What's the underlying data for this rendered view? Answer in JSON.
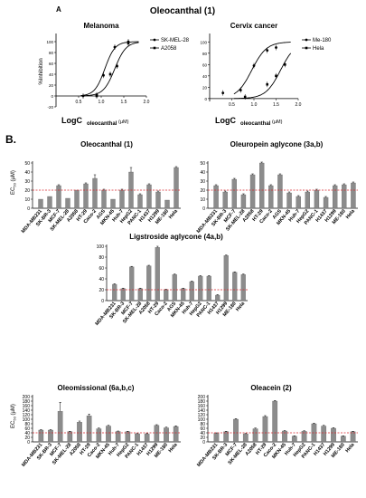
{
  "section_a": {
    "label": "A",
    "title": "Oleocanthal (1)",
    "panels": [
      {
        "title": "Melanoma",
        "ylabel": "%Inhibition",
        "xlabel_main": "LogC",
        "xlabel_sub": "oleocanthal",
        "xlabel_unit": "(µM)",
        "yticks": [
          "-20",
          "0",
          "20",
          "40",
          "60",
          "80",
          "100"
        ],
        "xticks": [
          "0.5",
          "1.0",
          "1.5",
          "2.0"
        ],
        "series": [
          {
            "name": "SK-MEL-28",
            "marker": "circle",
            "points": [
              [
                0.6,
                0
              ],
              [
                0.9,
                2
              ],
              [
                1.05,
                38
              ],
              [
                1.3,
                90
              ],
              [
                1.6,
                100
              ]
            ]
          },
          {
            "name": "A2058",
            "marker": "square",
            "points": [
              [
                0.9,
                0
              ],
              [
                1.2,
                40
              ],
              [
                1.35,
                55
              ],
              [
                1.6,
                97
              ]
            ]
          }
        ]
      },
      {
        "title": "Cervix cancer",
        "ylabel": "",
        "xlabel_main": "LogC",
        "xlabel_sub": "oleocanthal",
        "xlabel_unit": "(µM)",
        "yticks": [
          "0",
          "20",
          "40",
          "60",
          "80",
          "100"
        ],
        "xticks": [
          "0.5",
          "1.0",
          "1.5",
          "2.0"
        ],
        "series": [
          {
            "name": "Me-180",
            "marker": "circle",
            "points": [
              [
                0.3,
                10
              ],
              [
                0.7,
                15
              ],
              [
                1.0,
                58
              ],
              [
                1.3,
                85
              ],
              [
                1.5,
                90
              ]
            ]
          },
          {
            "name": "Hela",
            "marker": "square",
            "points": [
              [
                0.8,
                3
              ],
              [
                1.3,
                25
              ],
              [
                1.5,
                40
              ],
              [
                1.7,
                60
              ]
            ]
          }
        ]
      }
    ]
  },
  "section_b": {
    "label": "B.",
    "ylabel_main": "EC",
    "ylabel_sub": "50",
    "ylabel_unit": "(µM)"
  },
  "chart_data": [
    {
      "type": "line",
      "title": "Melanoma",
      "ylabel": "%Inhibition",
      "xlabel": "LogColeocanthal (µM)",
      "xlim": [
        0.0,
        2.0
      ],
      "ylim": [
        -20,
        110
      ],
      "series": [
        {
          "name": "SK-MEL-28",
          "x": [
            0.6,
            0.9,
            1.05,
            1.3,
            1.6
          ],
          "values": [
            0,
            2,
            38,
            90,
            100
          ]
        },
        {
          "name": "A2058",
          "x": [
            0.9,
            1.2,
            1.35,
            1.6
          ],
          "values": [
            0,
            40,
            55,
            97
          ]
        }
      ]
    },
    {
      "type": "line",
      "title": "Cervix cancer",
      "xlabel": "LogColeocanthal (µM)",
      "xlim": [
        0.0,
        2.0
      ],
      "ylim": [
        -5,
        110
      ],
      "series": [
        {
          "name": "Me-180",
          "x": [
            0.3,
            0.7,
            1.0,
            1.3,
            1.5
          ],
          "values": [
            10,
            15,
            58,
            85,
            90
          ]
        },
        {
          "name": "Hela",
          "x": [
            0.8,
            1.3,
            1.5,
            1.7
          ],
          "values": [
            3,
            25,
            40,
            60
          ]
        }
      ]
    },
    {
      "type": "bar",
      "title": "Oleocanthal (1)",
      "ylabel": "EC50 (µM)",
      "ylim": [
        0,
        50
      ],
      "yticks": [
        "0",
        "10",
        "20",
        "30",
        "40",
        "50"
      ],
      "reference_line": 20,
      "categories": [
        "MDA-MB231",
        "SK-BR-3",
        "MCF-7",
        "SK-MEL-28",
        "A2058",
        "HT-29",
        "Caco-2",
        "AGS",
        "MKN-45",
        "Huh-7",
        "HepG2",
        "PANC-1",
        "H1437",
        "H1299",
        "ME-180",
        "Hela"
      ],
      "values": [
        10,
        13,
        25,
        11,
        20,
        27,
        33,
        20,
        10,
        20,
        40,
        15,
        26,
        18,
        9,
        45
      ],
      "errors": [
        0,
        0,
        1,
        0,
        0,
        1,
        4,
        1,
        0,
        1,
        5,
        1,
        1,
        1,
        0,
        1
      ]
    },
    {
      "type": "bar",
      "title": "Oleuropein aglycone (3a,b)",
      "ylim": [
        0,
        50
      ],
      "yticks": [
        "0",
        "10",
        "20",
        "30",
        "40",
        "50"
      ],
      "reference_line": 20,
      "categories": [
        "MDA-MB231",
        "SK-BR-3",
        "MCF-7",
        "SK-MEL-28",
        "A2058",
        "HT-29",
        "Caco-2",
        "AGS",
        "MKN-45",
        "Huh-7",
        "HepG2",
        "PANC-1",
        "H1437",
        "H1299",
        "ME-180",
        "Hela"
      ],
      "values": [
        25,
        18,
        32,
        15,
        37,
        50,
        25,
        37,
        17,
        13,
        18,
        20,
        12,
        25,
        26,
        28
      ],
      "errors": [
        1,
        1,
        1,
        1,
        1,
        1,
        1,
        1,
        1,
        1,
        1,
        1,
        1,
        1,
        1,
        1
      ]
    },
    {
      "type": "bar",
      "title": "Ligstroside aglycone (4a,b)",
      "ylim": [
        0,
        100
      ],
      "yticks": [
        "0",
        "20",
        "40",
        "60",
        "80",
        "100"
      ],
      "reference_line": 20,
      "categories": [
        "MDA-MB231",
        "SK-BR-3",
        "MCF-7",
        "SK-MEL-28",
        "A2058",
        "HT-29",
        "Caco-2",
        "AGS",
        "MKN-45",
        "Huh-7",
        "HepG2",
        "PANC-1",
        "H1437",
        "H1299",
        "ME-180",
        "Hela"
      ],
      "values": [
        30,
        22,
        62,
        22,
        64,
        98,
        20,
        48,
        22,
        35,
        45,
        45,
        10,
        83,
        52,
        48
      ],
      "errors": [
        1,
        1,
        1,
        1,
        1,
        2,
        1,
        1,
        1,
        1,
        1,
        1,
        1,
        1,
        1,
        1
      ]
    },
    {
      "type": "bar",
      "title": "Oleomissional (6a,b,c)",
      "ylabel": "EC50 (µM)",
      "ylim": [
        0,
        200
      ],
      "yticks": [
        "0",
        "20",
        "40",
        "60",
        "80",
        "100",
        "120",
        "140",
        "160",
        "180",
        "200"
      ],
      "reference_line": 40,
      "categories": [
        "MDA-MB231",
        "SK-BR-3",
        "MCF-7",
        "SK-MEL-28",
        "A2058",
        "HT-29",
        "Caco-2",
        "MKN-45",
        "Huh-7",
        "HepG2",
        "PANC-1",
        "H1437",
        "H1299",
        "ME-180",
        "Hela"
      ],
      "values": [
        52,
        52,
        135,
        45,
        87,
        115,
        58,
        70,
        46,
        45,
        36,
        35,
        73,
        62,
        68
      ],
      "errors": [
        2,
        2,
        40,
        2,
        5,
        8,
        3,
        3,
        2,
        2,
        2,
        2,
        3,
        3,
        3
      ]
    },
    {
      "type": "bar",
      "title": "Oleacein (2)",
      "ylim": [
        0,
        200
      ],
      "yticks": [
        "0",
        "20",
        "40",
        "60",
        "80",
        "100",
        "120",
        "140",
        "160",
        "180",
        "200"
      ],
      "reference_line": 40,
      "categories": [
        "MDA-MB231",
        "SK-BR-3",
        "MCF-7",
        "SK-MEL-28",
        "A2058",
        "HT-29",
        "Caco-2",
        "MKN-45",
        "Huh-7",
        "HepG2",
        "PANC-1",
        "H1437",
        "H1299",
        "ME-180",
        "Hela"
      ],
      "values": [
        38,
        45,
        100,
        35,
        58,
        112,
        180,
        48,
        25,
        47,
        80,
        70,
        60,
        25,
        45
      ],
      "errors": [
        2,
        2,
        3,
        2,
        3,
        4,
        3,
        2,
        2,
        2,
        3,
        3,
        3,
        2,
        2
      ]
    }
  ],
  "style": {
    "bar_color": "#8c8c8c",
    "bar_edge": "#5a5a5a",
    "reference_color": "#d9282f",
    "line_color": "#000000"
  }
}
